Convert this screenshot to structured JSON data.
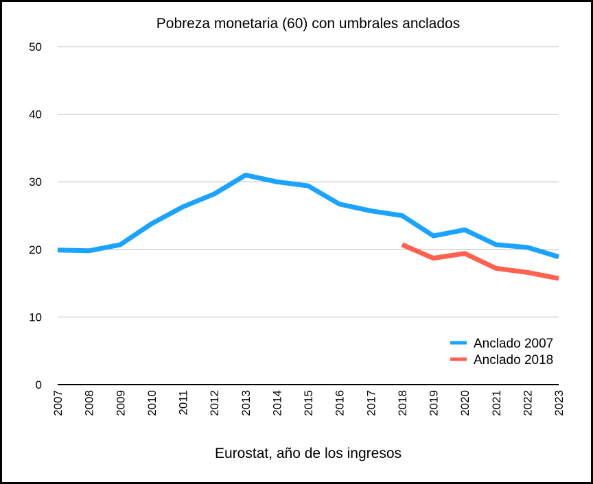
{
  "chart_data": {
    "type": "line",
    "title": "Pobreza monetaria (60) con umbrales anclados",
    "xlabel": "Eurostat, año de los ingresos",
    "ylabel": "",
    "x": [
      "2007",
      "2008",
      "2009",
      "2010",
      "2011",
      "2012",
      "2013",
      "2014",
      "2015",
      "2016",
      "2017",
      "2018",
      "2019",
      "2020",
      "2021",
      "2022",
      "2023"
    ],
    "ylim": [
      0,
      50
    ],
    "yticks": [
      0,
      10,
      20,
      30,
      40,
      50
    ],
    "grid": true,
    "legend_position": "bottom-right",
    "series": [
      {
        "name": "Anclado 2007",
        "color": "#1aa3ff",
        "values": [
          19.9,
          19.8,
          20.7,
          23.8,
          26.3,
          28.2,
          31.0,
          30.0,
          29.4,
          26.7,
          25.7,
          25.0,
          22.0,
          22.9,
          20.7,
          20.3,
          18.9
        ]
      },
      {
        "name": "Anclado 2018",
        "color": "#ff6150",
        "values": [
          null,
          null,
          null,
          null,
          null,
          null,
          null,
          null,
          null,
          null,
          null,
          20.7,
          18.7,
          19.4,
          17.2,
          16.6,
          15.7
        ]
      }
    ]
  }
}
